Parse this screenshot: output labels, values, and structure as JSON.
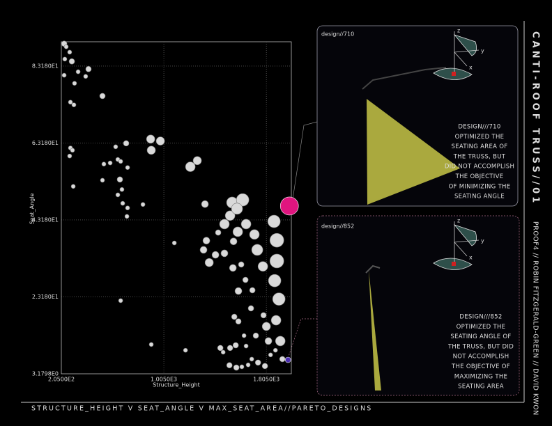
{
  "chart_data": {
    "type": "scatter",
    "xlabel": "Structure_Height",
    "ylabel": "Seat_Angle",
    "xlim": [
      205,
      2000
    ],
    "ylim": [
      3.1798,
      89.5
    ],
    "xticks": [
      {
        "value": 205,
        "label": "2.0500E2"
      },
      {
        "value": 1005,
        "label": "1.0050E3"
      },
      {
        "value": 1805,
        "label": "1.8050E3"
      }
    ],
    "yticks": [
      {
        "value": 3.1798,
        "label": "3.1798E0"
      },
      {
        "value": 23.18,
        "label": "2.3180E1"
      },
      {
        "value": 43.18,
        "label": "4.3180E1"
      },
      {
        "value": 63.18,
        "label": "6.3180E1"
      },
      {
        "value": 83.18,
        "label": "8.3180E1"
      }
    ],
    "grid": true,
    "color": "#d9d9d9",
    "x": [
      227,
      243,
      270,
      232,
      287,
      417,
      336,
      395,
      227,
      308,
      526,
      276,
      303,
      902,
      978,
      711,
      629,
      276,
      292,
      907,
      270,
      646,
      668,
      586,
      722,
      1266,
      1212,
      537,
      662,
      526,
      298,
      678,
      646,
      1326,
      842,
      684,
      722,
      717,
      1538,
      1620,
      1522,
      1576,
      1478,
      1647,
      1582,
      1429,
      1549,
      1712,
      1734,
      1087,
      1337,
      1315,
      1478,
      1408,
      1359,
      1544,
      1609,
      1778,
      1865,
      1887,
      1887,
      1870,
      1903,
      1881,
      1805,
      1821,
      1914,
      1783,
      1696,
      1587,
      1642,
      668,
      1555,
      1587,
      1723,
      1631,
      1566,
      1647,
      1446,
      1522,
      1468,
      1517,
      1571,
      1614,
      1663,
      1691,
      1740,
      1794,
      1838,
      1876,
      907,
      1174,
      1685,
      1930,
      1985,
      1974
    ],
    "values": [
      89.0,
      88.2,
      86.8,
      85.0,
      84.4,
      82.4,
      81.7,
      80.5,
      80.8,
      78.7,
      75.4,
      73.8,
      73.1,
      64.2,
      63.7,
      63.1,
      62.2,
      61.9,
      61.3,
      61.3,
      59.8,
      58.9,
      58.4,
      58.0,
      56.8,
      58.6,
      57.0,
      57.7,
      53.7,
      53.5,
      51.9,
      51.1,
      49.7,
      47.3,
      47.2,
      47.5,
      46.3,
      44.1,
      47.7,
      48.4,
      44.3,
      46.1,
      42.1,
      42.1,
      40.1,
      39.9,
      37.6,
      39.4,
      35.4,
      37.2,
      37.8,
      35.4,
      34.5,
      34.1,
      32.1,
      30.7,
      31.6,
      31.1,
      42.8,
      37.9,
      32.5,
      27.4,
      22.6,
      17.1,
      15.5,
      11.7,
      11.7,
      18.4,
      24.9,
      24.7,
      27.6,
      22.2,
      18.0,
      16.8,
      13.1,
      13.1,
      10.6,
      10.4,
      9.9,
      9.9,
      8.8,
      5.4,
      4.8,
      5.0,
      5.5,
      7.0,
      6.1,
      5.2,
      8.1,
      9.3,
      10.8,
      9.3,
      20.2,
      7.0,
      46.8,
      6.8
    ],
    "sizes": [
      4,
      3,
      3,
      3,
      4,
      4,
      3,
      3,
      3,
      3,
      4,
      3,
      3,
      6,
      6,
      4,
      3,
      3,
      3,
      6,
      3,
      3,
      3,
      3,
      3,
      6,
      7,
      3,
      4,
      3,
      3,
      3,
      3,
      5,
      3,
      3,
      3,
      3,
      8,
      9,
      7,
      8,
      7,
      7,
      7,
      4,
      5,
      7,
      8,
      3,
      5,
      5,
      5,
      5,
      6,
      5,
      4,
      7,
      9,
      10,
      10,
      9,
      9,
      7,
      6,
      5,
      7,
      4,
      4,
      5,
      4,
      3,
      4,
      4,
      4,
      3,
      4,
      3,
      4,
      4,
      3,
      4,
      4,
      3,
      3,
      3,
      4,
      4,
      3,
      3,
      3,
      3,
      4,
      4,
      13,
      4
    ],
    "highlights": [
      {
        "index": 94,
        "color": "#e0157f"
      },
      {
        "index": 95,
        "color": "#4b2fb0"
      }
    ]
  },
  "panels": [
    {
      "title": "design//710",
      "text": [
        "DESIGN///710",
        "OPTIMIZED THE",
        "SEATING AREA OF",
        "THE  TRUSS, BUT",
        "DID NOT ACCOMPLISH",
        "THE OBJECTIVE",
        "OF  MINIMIZING THE",
        "SEATING ANGLE"
      ]
    },
    {
      "title": "design//852",
      "text": [
        "DESIGN///852",
        "OPTIMIZED THE",
        "SEATING ANGLE OF",
        "THE TRUSS, BUT DID",
        "NOT ACCOMPLISH",
        "THE OBJECTIVE OF",
        "MAXIMIZING THE",
        "SEATING AREA"
      ]
    }
  ],
  "sidebar": {
    "title": "CANTI-ROOF TRUSS//01",
    "credits": "PROOF4 // ROBIN FITZGERALD-GREEN // DAVID KWON"
  },
  "caption": "STRUCTURE_HEIGHT V SEAT_ANGLE V MAX_SEAT_AREA//PARETO_DESIGNS",
  "axes_labels": [
    "z",
    "y",
    "x"
  ]
}
